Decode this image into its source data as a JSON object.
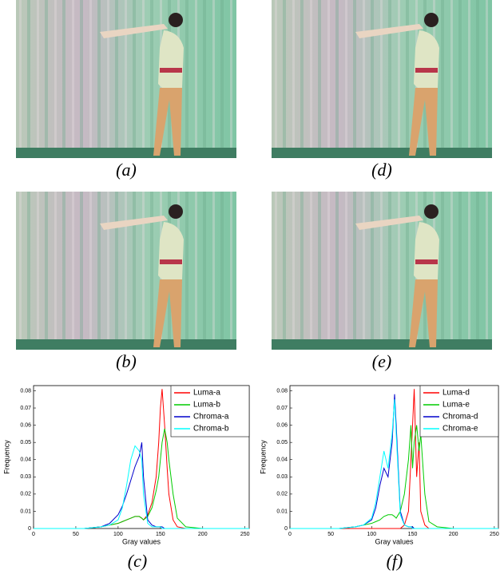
{
  "captions": [
    "(a)",
    "(d)",
    "(b)",
    "(e)",
    "(c)",
    "(f)"
  ],
  "chart_data": [
    {
      "type": "line",
      "xlabel": "Gray values",
      "ylabel": "Frequency",
      "xlim": [
        0,
        255
      ],
      "ylim": [
        0,
        0.083
      ],
      "xticks": [
        0,
        50,
        100,
        150,
        200,
        250
      ],
      "yticks": [
        0,
        0.01,
        0.02,
        0.03,
        0.04,
        0.05,
        0.06,
        0.07,
        0.08
      ],
      "legend": "upper right",
      "x": [
        0,
        20,
        40,
        60,
        80,
        90,
        100,
        105,
        110,
        115,
        120,
        125,
        128,
        130,
        135,
        140,
        145,
        148,
        150,
        152,
        155,
        158,
        160,
        165,
        170,
        180,
        200,
        220,
        255
      ],
      "series": [
        {
          "name": "Luma-a",
          "color": "#ff0000",
          "values": [
            0,
            0,
            0,
            0,
            0.001,
            0.002,
            0.003,
            0.004,
            0.005,
            0.006,
            0.007,
            0.007,
            0.006,
            0.005,
            0.008,
            0.015,
            0.03,
            0.05,
            0.07,
            0.081,
            0.06,
            0.035,
            0.02,
            0.005,
            0.001,
            0,
            0,
            0,
            0
          ]
        },
        {
          "name": "Luma-b",
          "color": "#00cc00",
          "values": [
            0,
            0,
            0,
            0,
            0.001,
            0.002,
            0.003,
            0.004,
            0.005,
            0.006,
            0.007,
            0.007,
            0.006,
            0.005,
            0.007,
            0.012,
            0.022,
            0.03,
            0.04,
            0.05,
            0.058,
            0.05,
            0.04,
            0.02,
            0.006,
            0.001,
            0,
            0,
            0
          ]
        },
        {
          "name": "Chroma-a",
          "color": "#0000cc",
          "values": [
            0,
            0,
            0,
            0,
            0.001,
            0.003,
            0.008,
            0.013,
            0.02,
            0.028,
            0.036,
            0.042,
            0.05,
            0.03,
            0.005,
            0.002,
            0.001,
            0.001,
            0.001,
            0.001,
            0,
            0,
            0,
            0,
            0,
            0,
            0,
            0,
            0
          ]
        },
        {
          "name": "Chroma-b",
          "color": "#00ffff",
          "values": [
            0,
            0,
            0,
            0,
            0.001,
            0.002,
            0.005,
            0.012,
            0.025,
            0.04,
            0.048,
            0.045,
            0.04,
            0.02,
            0.003,
            0.001,
            0.001,
            0.001,
            0.001,
            0,
            0,
            0,
            0,
            0,
            0,
            0,
            0,
            0,
            0
          ]
        }
      ]
    },
    {
      "type": "line",
      "xlabel": "Gray values",
      "ylabel": "Frequency",
      "xlim": [
        0,
        255
      ],
      "ylim": [
        0,
        0.083
      ],
      "xticks": [
        0,
        50,
        100,
        150,
        200,
        250
      ],
      "yticks": [
        0,
        0.01,
        0.02,
        0.03,
        0.04,
        0.05,
        0.06,
        0.07,
        0.08
      ],
      "legend": "upper right",
      "x": [
        0,
        20,
        40,
        60,
        80,
        90,
        100,
        105,
        110,
        115,
        120,
        125,
        128,
        130,
        135,
        140,
        145,
        148,
        150,
        152,
        155,
        158,
        160,
        165,
        170,
        180,
        200,
        220,
        255
      ],
      "series": [
        {
          "name": "Luma-d",
          "color": "#ff0000",
          "values": [
            0,
            0,
            0,
            0,
            0,
            0,
            0,
            0,
            0,
            0,
            0,
            0,
            0,
            0,
            0,
            0.002,
            0.01,
            0.04,
            0.06,
            0.081,
            0.03,
            0.05,
            0.01,
            0.002,
            0,
            0,
            0,
            0,
            0
          ]
        },
        {
          "name": "Luma-e",
          "color": "#00cc00",
          "values": [
            0,
            0,
            0,
            0,
            0.001,
            0.002,
            0.003,
            0.004,
            0.005,
            0.007,
            0.008,
            0.008,
            0.007,
            0.006,
            0.01,
            0.02,
            0.04,
            0.06,
            0.035,
            0.05,
            0.06,
            0.045,
            0.055,
            0.02,
            0.004,
            0.001,
            0,
            0,
            0
          ]
        },
        {
          "name": "Chroma-d",
          "color": "#0000cc",
          "values": [
            0,
            0,
            0,
            0,
            0.001,
            0.002,
            0.005,
            0.012,
            0.025,
            0.035,
            0.03,
            0.05,
            0.078,
            0.06,
            0.01,
            0.002,
            0.001,
            0.001,
            0.001,
            0,
            0,
            0,
            0,
            0,
            0,
            0,
            0,
            0,
            0
          ]
        },
        {
          "name": "Chroma-e",
          "color": "#00ffff",
          "values": [
            0,
            0,
            0,
            0,
            0.001,
            0.002,
            0.006,
            0.015,
            0.03,
            0.045,
            0.035,
            0.055,
            0.075,
            0.055,
            0.008,
            0.002,
            0.001,
            0.001,
            0,
            0,
            0,
            0,
            0,
            0,
            0,
            0,
            0,
            0,
            0
          ]
        }
      ]
    }
  ]
}
